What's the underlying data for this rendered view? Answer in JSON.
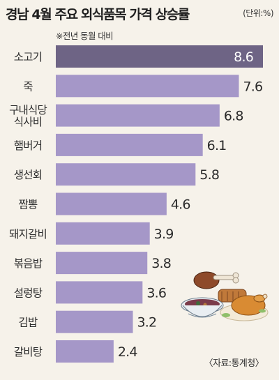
{
  "title": "경남 4월 주요 외식품목 가격 상승률",
  "unit": "(단위:%)",
  "note": "※전년 동월 대비",
  "source": "〈자료:통계청〉",
  "colors": {
    "bar": "#a597c8",
    "bar_highlight": "#6e6485",
    "background": "#f6f2ea"
  },
  "icon": "food-illustration",
  "chart_data": {
    "type": "bar",
    "orientation": "horizontal",
    "categories": [
      "소고기",
      "죽",
      "구내식당\n식사비",
      "햄버거",
      "생선회",
      "짬뽕",
      "돼지갈비",
      "볶음밥",
      "설렁탕",
      "김밥",
      "갈비탕"
    ],
    "values": [
      8.6,
      7.6,
      6.8,
      6.1,
      5.8,
      4.6,
      3.9,
      3.8,
      3.6,
      3.2,
      2.4
    ],
    "value_labels": [
      "8.6",
      "7.6",
      "6.8",
      "6.1",
      "5.8",
      "4.6",
      "3.9",
      "3.8",
      "3.6",
      "3.2",
      "2.4"
    ],
    "title": "경남 4월 주요 외식품목 가격 상승률",
    "xlabel": "",
    "ylabel": "",
    "xlim": [
      0,
      8.6
    ],
    "highlight_index": 0,
    "grid": false,
    "legend": "none"
  }
}
